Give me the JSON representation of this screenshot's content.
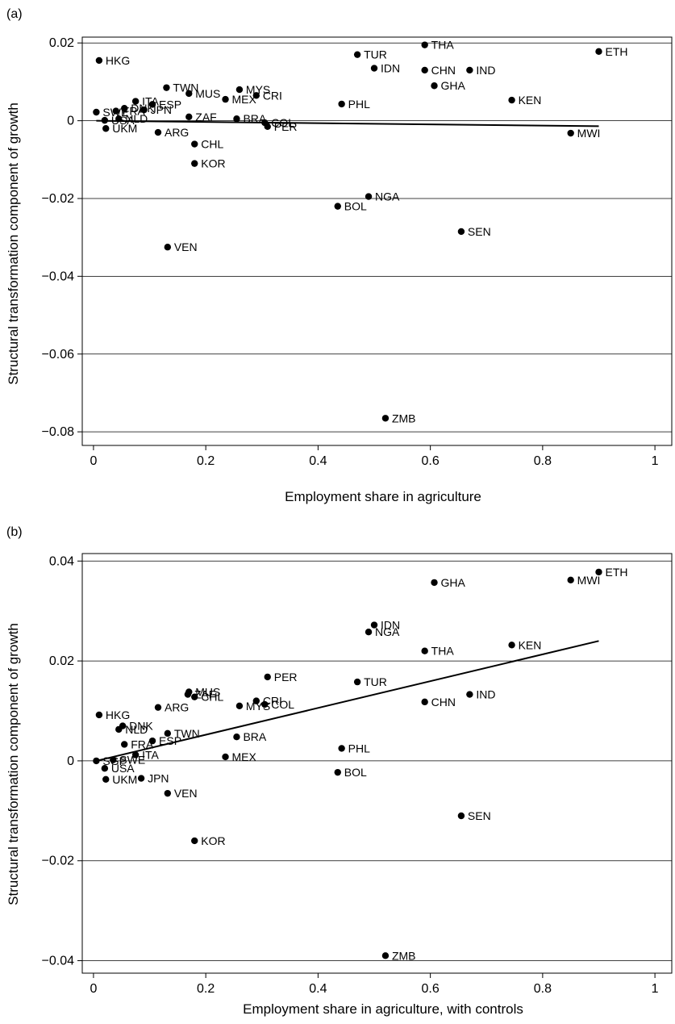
{
  "chart_data": [
    {
      "type": "scatter",
      "panel_label": "(a)",
      "xlabel": "Employment share in agriculture",
      "ylabel": "Structural transformation component of growth",
      "xlim": [
        -0.02,
        1.03
      ],
      "ylim": [
        -0.0835,
        0.0215
      ],
      "xticks": [
        0,
        0.2,
        0.4,
        0.6,
        0.8,
        1
      ],
      "xtick_labels": [
        "0",
        "0.2",
        "0.4",
        "0.6",
        "0.8",
        "1"
      ],
      "yticks": [
        0.02,
        0,
        -0.02,
        -0.04,
        -0.06,
        -0.08
      ],
      "ytick_labels": [
        "0.02",
        "0",
        "−0.02",
        "−0.04",
        "−0.06",
        "−0.08"
      ],
      "grid": "horizontal",
      "fit_line": {
        "x": [
          0.005,
          0.9
        ],
        "y": [
          0.0,
          -0.0014
        ]
      },
      "points": [
        {
          "label": "HKG",
          "x": 0.01,
          "y": 0.0155
        },
        {
          "label": "TWN",
          "x": 0.13,
          "y": 0.0085
        },
        {
          "label": "MUS",
          "x": 0.17,
          "y": 0.007
        },
        {
          "label": "MYS",
          "x": 0.26,
          "y": 0.008
        },
        {
          "label": "MEX",
          "x": 0.235,
          "y": 0.0055
        },
        {
          "label": "CRI",
          "x": 0.29,
          "y": 0.0065
        },
        {
          "label": "ITA",
          "x": 0.075,
          "y": 0.005
        },
        {
          "label": "ESP",
          "x": 0.105,
          "y": 0.0042
        },
        {
          "label": "JPN",
          "x": 0.09,
          "y": 0.0028
        },
        {
          "label": "DNK",
          "x": 0.055,
          "y": 0.0032
        },
        {
          "label": "FRA",
          "x": 0.04,
          "y": 0.0025
        },
        {
          "label": "SWE",
          "x": 0.005,
          "y": 0.0022
        },
        {
          "label": "USA",
          "x": 0.02,
          "y": 0.0001
        },
        {
          "label": "NLD",
          "x": 0.045,
          "y": 0.0005
        },
        {
          "label": "UKM",
          "x": 0.022,
          "y": -0.002
        },
        {
          "label": "ZAF",
          "x": 0.17,
          "y": 0.001
        },
        {
          "label": "ARG",
          "x": 0.115,
          "y": -0.003
        },
        {
          "label": "BRA",
          "x": 0.255,
          "y": 0.0005
        },
        {
          "label": "COL",
          "x": 0.305,
          "y": -0.0005
        },
        {
          "label": "PER",
          "x": 0.31,
          "y": -0.0015
        },
        {
          "label": "CHL",
          "x": 0.18,
          "y": -0.006
        },
        {
          "label": "KOR",
          "x": 0.18,
          "y": -0.011
        },
        {
          "label": "VEN",
          "x": 0.132,
          "y": -0.0325
        },
        {
          "label": "TUR",
          "x": 0.47,
          "y": 0.017
        },
        {
          "label": "IDN",
          "x": 0.5,
          "y": 0.0135
        },
        {
          "label": "PHL",
          "x": 0.442,
          "y": 0.0043
        },
        {
          "label": "THA",
          "x": 0.59,
          "y": 0.0195
        },
        {
          "label": "CHN",
          "x": 0.59,
          "y": 0.013
        },
        {
          "label": "IND",
          "x": 0.67,
          "y": 0.013
        },
        {
          "label": "GHA",
          "x": 0.607,
          "y": 0.009
        },
        {
          "label": "KEN",
          "x": 0.745,
          "y": 0.0053
        },
        {
          "label": "ETH",
          "x": 0.9,
          "y": 0.0178
        },
        {
          "label": "MWI",
          "x": 0.85,
          "y": -0.0032
        },
        {
          "label": "NGA",
          "x": 0.49,
          "y": -0.0195
        },
        {
          "label": "BOL",
          "x": 0.435,
          "y": -0.022
        },
        {
          "label": "SEN",
          "x": 0.655,
          "y": -0.0285
        },
        {
          "label": "ZMB",
          "x": 0.52,
          "y": -0.0765
        }
      ]
    },
    {
      "type": "scatter",
      "panel_label": "(b)",
      "xlabel": "Employment share in agriculture, with controls",
      "ylabel": "Structural transformation component of growth",
      "xlim": [
        -0.02,
        1.03
      ],
      "ylim": [
        -0.0425,
        0.0415
      ],
      "xticks": [
        0,
        0.2,
        0.4,
        0.6,
        0.8,
        1
      ],
      "xtick_labels": [
        "0",
        "0.2",
        "0.4",
        "0.6",
        "0.8",
        "1"
      ],
      "yticks": [
        0.04,
        0.02,
        0,
        -0.02,
        -0.04
      ],
      "ytick_labels": [
        "0.04",
        "0.02",
        "0",
        "−0.02",
        "−0.04"
      ],
      "grid": "horizontal",
      "fit_line": {
        "x": [
          0.005,
          0.9
        ],
        "y": [
          0.0,
          0.024
        ]
      },
      "points": [
        {
          "label": "HKG",
          "x": 0.01,
          "y": 0.0092
        },
        {
          "label": "DNK",
          "x": 0.052,
          "y": 0.007
        },
        {
          "label": "NLD",
          "x": 0.045,
          "y": 0.0063
        },
        {
          "label": "FRA",
          "x": 0.055,
          "y": 0.0033
        },
        {
          "label": "ITA",
          "x": 0.075,
          "y": 0.0012
        },
        {
          "label": "SGP",
          "x": 0.005,
          "y": 0.0
        },
        {
          "label": "SWE",
          "x": 0.035,
          "y": 0.0002
        },
        {
          "label": "USA",
          "x": 0.02,
          "y": -0.0015
        },
        {
          "label": "UKM",
          "x": 0.022,
          "y": -0.0037
        },
        {
          "label": "JPN",
          "x": 0.085,
          "y": -0.0035
        },
        {
          "label": "TWN",
          "x": 0.132,
          "y": 0.0055
        },
        {
          "label": "ESP",
          "x": 0.105,
          "y": 0.004
        },
        {
          "label": "ARG",
          "x": 0.115,
          "y": 0.0107
        },
        {
          "label": "MUS",
          "x": 0.17,
          "y": 0.0138
        },
        {
          "label": "ZAF",
          "x": 0.168,
          "y": 0.0133
        },
        {
          "label": "CHL",
          "x": 0.18,
          "y": 0.0128
        },
        {
          "label": "VEN",
          "x": 0.132,
          "y": -0.0065
        },
        {
          "label": "KOR",
          "x": 0.18,
          "y": -0.016
        },
        {
          "label": "MYS",
          "x": 0.26,
          "y": 0.011
        },
        {
          "label": "CRI",
          "x": 0.29,
          "y": 0.012
        },
        {
          "label": "COL",
          "x": 0.305,
          "y": 0.0113
        },
        {
          "label": "PER",
          "x": 0.31,
          "y": 0.0168
        },
        {
          "label": "BRA",
          "x": 0.255,
          "y": 0.0048
        },
        {
          "label": "MEX",
          "x": 0.235,
          "y": 0.0008
        },
        {
          "label": "TUR",
          "x": 0.47,
          "y": 0.0158
        },
        {
          "label": "IDN",
          "x": 0.5,
          "y": 0.0272
        },
        {
          "label": "NGA",
          "x": 0.49,
          "y": 0.0258
        },
        {
          "label": "PHL",
          "x": 0.442,
          "y": 0.0025
        },
        {
          "label": "BOL",
          "x": 0.435,
          "y": -0.0023
        },
        {
          "label": "THA",
          "x": 0.59,
          "y": 0.022
        },
        {
          "label": "CHN",
          "x": 0.59,
          "y": 0.0118
        },
        {
          "label": "IND",
          "x": 0.67,
          "y": 0.0133
        },
        {
          "label": "GHA",
          "x": 0.607,
          "y": 0.0357
        },
        {
          "label": "KEN",
          "x": 0.745,
          "y": 0.0232
        },
        {
          "label": "MWI",
          "x": 0.85,
          "y": 0.0362
        },
        {
          "label": "ETH",
          "x": 0.9,
          "y": 0.0378
        },
        {
          "label": "SEN",
          "x": 0.655,
          "y": -0.011
        },
        {
          "label": "ZMB",
          "x": 0.52,
          "y": -0.039
        }
      ]
    }
  ]
}
